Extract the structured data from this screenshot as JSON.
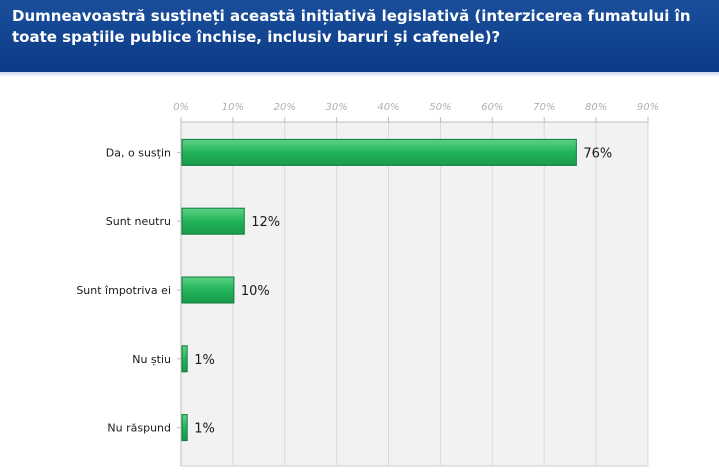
{
  "header": {
    "title": "Dumneavoastră susțineți această inițiativă legislativă (interzicerea fumatului în toate spațiile publice închise, inclusiv baruri și cafenele)?"
  },
  "colors": {
    "header_bg": "#0b3a86",
    "bar_fill": "#22b45a",
    "bar_stroke": "#0f7a3a",
    "plot_bg": "#f2f2f2",
    "grid": "#d9d9d9"
  },
  "chart_data": {
    "type": "bar",
    "orientation": "horizontal",
    "title": "Dumneavoastră susțineți această inițiativă legislativă (interzicerea fumatului în toate spațiile publice închise, inclusiv baruri și cafenele)?",
    "categories": [
      "Da, o susțin",
      "Sunt neutru",
      "Sunt împotriva ei",
      "Nu știu",
      "Nu răspund"
    ],
    "values": [
      76,
      12,
      10,
      1,
      1
    ],
    "value_labels": [
      "76%",
      "12%",
      "10%",
      "1%",
      "1%"
    ],
    "xlim": [
      0,
      90
    ],
    "x_ticks": [
      0,
      10,
      20,
      30,
      40,
      50,
      60,
      70,
      80,
      90
    ],
    "x_tick_labels": [
      "0%",
      "10%",
      "20%",
      "30%",
      "40%",
      "50%",
      "60%",
      "70%",
      "80%",
      "90%"
    ],
    "axis_position": "top",
    "grid": true,
    "xlabel": "",
    "ylabel": ""
  }
}
